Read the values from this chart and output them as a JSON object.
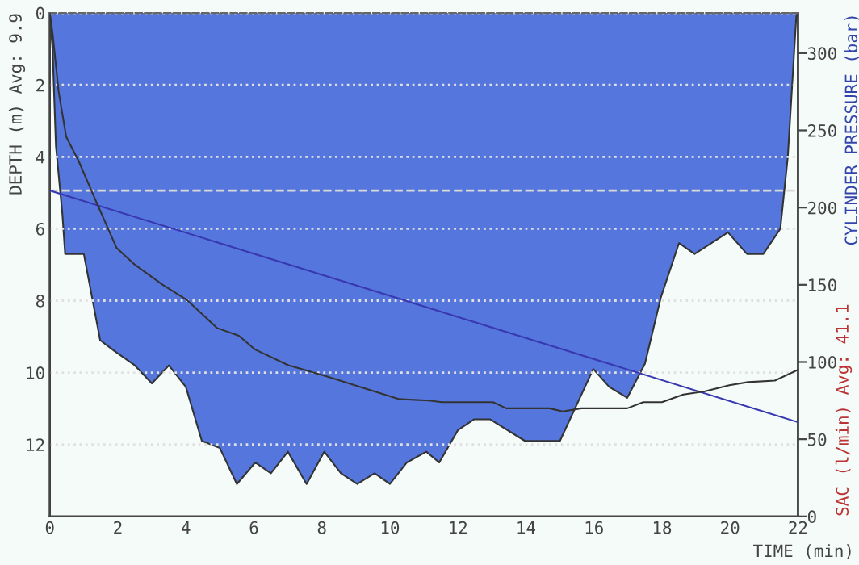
{
  "chart_data": {
    "type": "area",
    "xlabel": "TIME (min)",
    "ylabel": "DEPTH (m) Avg: 9.9",
    "y2label": "CYLINDER PRESSURE (bar)",
    "annotations": [
      "SAC (l/min) Avg: 41.1"
    ],
    "xlim": [
      0,
      22
    ],
    "xticks": [
      0,
      2,
      4,
      6,
      8,
      10,
      12,
      14,
      16,
      18,
      20,
      22
    ],
    "ylim": [
      14,
      0
    ],
    "yticks": [
      0,
      2,
      4,
      6,
      8,
      10,
      12
    ],
    "y2lim": [
      0,
      326
    ],
    "y2ticks": [
      0,
      50,
      100,
      150,
      200,
      250,
      300
    ],
    "grid": "y",
    "legend": false,
    "ref_lines": [
      {
        "axis": "y2",
        "value": 211,
        "color": "#d8d8d8",
        "line_style": "dashed"
      }
    ],
    "series": [
      {
        "color": "#5577dd",
        "x": [
          0,
          0.08,
          0.18,
          0.37,
          0.45,
          1.0,
          1.48,
          1.9,
          2.5,
          3.0,
          3.5,
          4.0,
          4.47,
          5.0,
          5.5,
          6.04,
          6.5,
          7.0,
          7.55,
          8.07,
          8.56,
          9.04,
          9.55,
          10.0,
          10.5,
          11.07,
          11.45,
          12.0,
          12.47,
          12.95,
          13.97,
          15.0,
          15.98,
          16.45,
          16.98,
          17.5,
          17.97,
          18.5,
          18.96,
          19.94,
          20.5,
          20.98,
          21.48,
          21.7,
          21.95,
          22.0
        ],
        "values": [
          0,
          1.0,
          3.7,
          5.6,
          6.7,
          6.7,
          9.1,
          9.4,
          9.8,
          10.3,
          9.8,
          10.4,
          11.9,
          12.1,
          13.1,
          12.5,
          12.8,
          12.2,
          13.1,
          12.2,
          12.8,
          13.1,
          12.8,
          13.1,
          12.5,
          12.2,
          12.5,
          11.6,
          11.3,
          11.3,
          11.9,
          11.9,
          9.9,
          10.4,
          10.7,
          9.75,
          7.9,
          6.4,
          6.7,
          6.1,
          6.7,
          6.7,
          6.0,
          4.0,
          0.1,
          0
        ]
      },
      {
        "type": "line",
        "axis": "y2",
        "color": "#3838b0",
        "x": [
          0,
          22
        ],
        "values": [
          211,
          61
        ]
      },
      {
        "type": "line",
        "axis": "y2",
        "color": "#333333",
        "x": [
          0,
          0.08,
          0.26,
          0.48,
          0.85,
          1.4,
          1.96,
          2.5,
          3.32,
          4.04,
          4.92,
          5.56,
          6.04,
          7.0,
          8.1,
          9.4,
          10.27,
          11.15,
          11.53,
          13.03,
          13.42,
          14.69,
          15.08,
          15.63,
          16.98,
          17.45,
          18.0,
          18.63,
          19.27,
          19.98,
          20.53,
          21.32,
          22.0
        ],
        "values": [
          326,
          313,
          275,
          246,
          230,
          202,
          174,
          163,
          150,
          140,
          122,
          117,
          108,
          98,
          91,
          82,
          76,
          75,
          74,
          74,
          70,
          70,
          68,
          70,
          70,
          74,
          74,
          79,
          81,
          85,
          87,
          88,
          95
        ]
      }
    ]
  }
}
